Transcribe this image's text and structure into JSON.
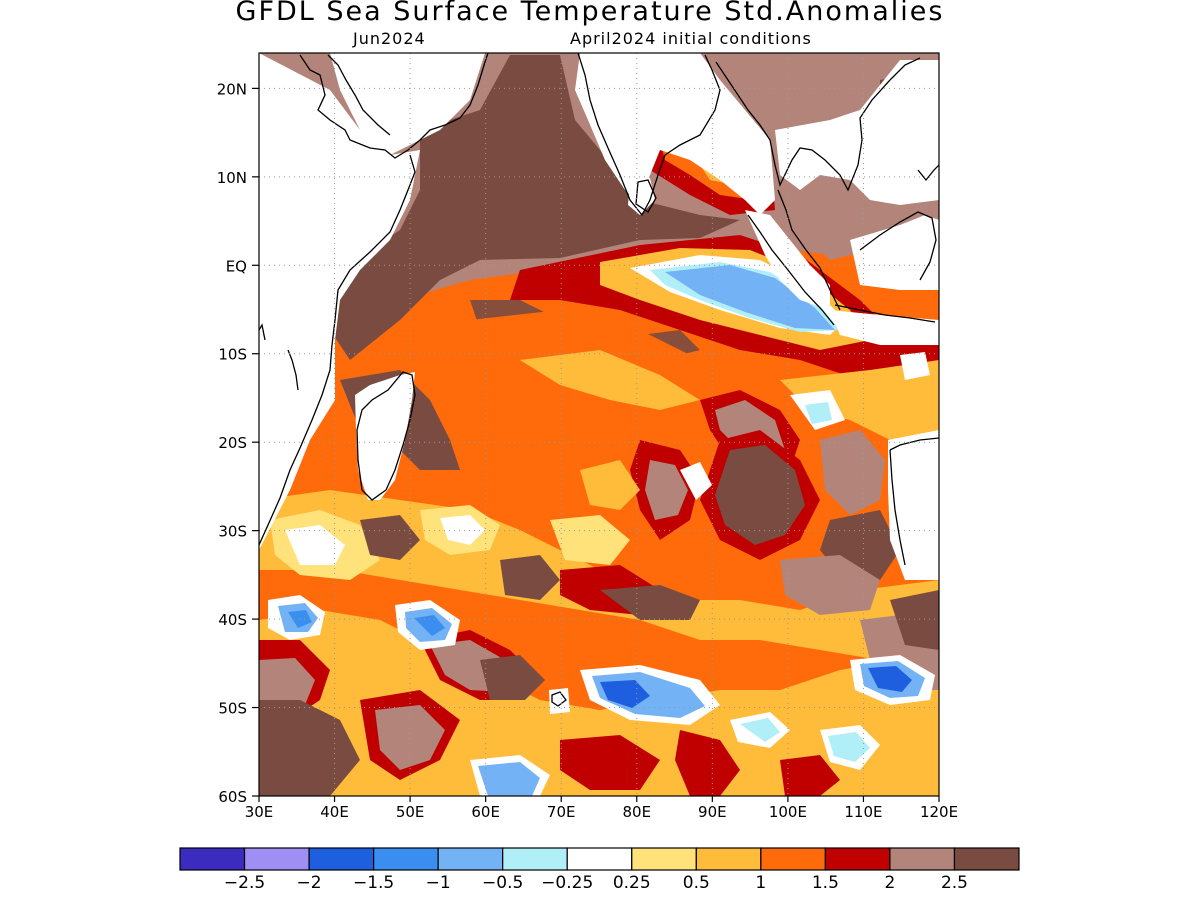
{
  "title": "GFDL Sea Surface Temperature Std.Anomalies",
  "subtitle_left": "Jun2024",
  "subtitle_right": "April2024 initial conditions",
  "map": {
    "lon_range": [
      30,
      120
    ],
    "lat_range": [
      -60,
      24
    ],
    "lat_ticks": [
      {
        "value": 20,
        "label": "20N"
      },
      {
        "value": 10,
        "label": "10N"
      },
      {
        "value": 0,
        "label": "EQ"
      },
      {
        "value": -10,
        "label": "10S"
      },
      {
        "value": -20,
        "label": "20S"
      },
      {
        "value": -30,
        "label": "30S"
      },
      {
        "value": -40,
        "label": "40S"
      },
      {
        "value": -50,
        "label": "50S"
      },
      {
        "value": -60,
        "label": "60S"
      }
    ],
    "lon_ticks": [
      {
        "value": 30,
        "label": "30E"
      },
      {
        "value": 40,
        "label": "40E"
      },
      {
        "value": 50,
        "label": "50E"
      },
      {
        "value": 60,
        "label": "60E"
      },
      {
        "value": 70,
        "label": "70E"
      },
      {
        "value": 80,
        "label": "80E"
      },
      {
        "value": 90,
        "label": "90E"
      },
      {
        "value": 100,
        "label": "100E"
      },
      {
        "value": 110,
        "label": "110E"
      },
      {
        "value": 120,
        "label": "120E"
      }
    ],
    "grid": true
  },
  "colorbar": {
    "colors": [
      "#3b2bbf",
      "#9f8ff5",
      "#1e5fe0",
      "#3a8ef0",
      "#73b3f5",
      "#b0eef8",
      "#ffffff",
      "#ffe27a",
      "#ffbb3a",
      "#ff6a0a",
      "#c00000",
      "#b3857a",
      "#7a4b40"
    ],
    "labels": [
      "−2.5",
      "−2",
      "−1.5",
      "−1",
      "−0.5",
      "−0.25",
      "0.25",
      "0.5",
      "1",
      "1.5",
      "2",
      "2.5"
    ]
  }
}
